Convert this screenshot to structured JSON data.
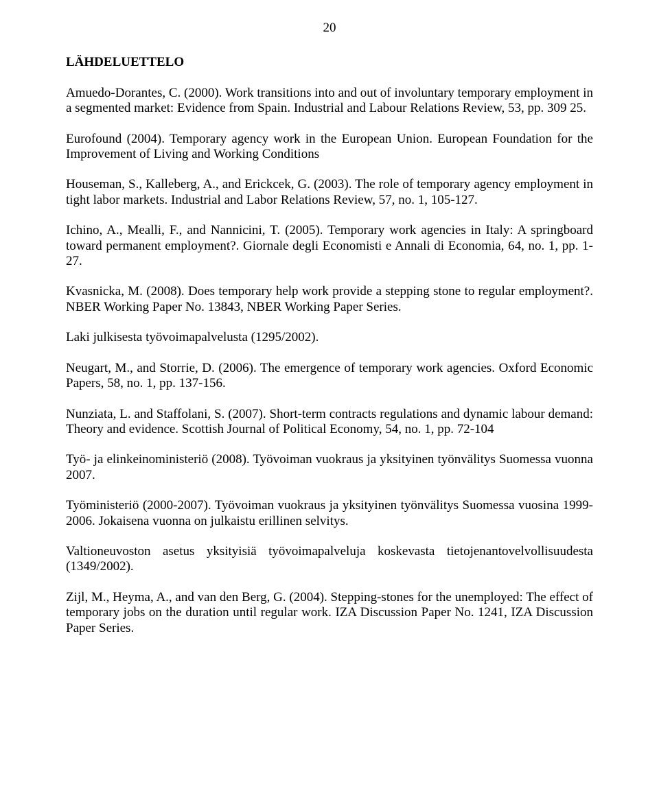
{
  "page": {
    "number": "20",
    "heading": "LÄHDELUETTELO",
    "background_color": "#ffffff",
    "text_color": "#000000",
    "font_family": "Times New Roman",
    "body_fontsize_pt": 14
  },
  "references": [
    "Amuedo-Dorantes, C. (2000). Work transitions into and out of involuntary temporary employment in a segmented market: Evidence from Spain. Industrial and Labour Relations Review, 53, pp. 309 25.",
    "Eurofound (2004). Temporary agency work in the European Union. European Foundation for the Improvement of Living and Working Conditions",
    "Houseman, S., Kalleberg, A., and Erickcek, G. (2003). The role of temporary agency employment in tight labor markets. Industrial and Labor Relations Review, 57, no. 1, 105-127.",
    "Ichino, A., Mealli, F., and Nannicini, T. (2005). Temporary work agencies in Italy: A springboard toward permanent employment?. Giornale degli Economisti e Annali di Economia, 64, no. 1, pp. 1-27.",
    "Kvasnicka, M. (2008). Does temporary help work provide a stepping stone to regular employment?. NBER Working Paper No. 13843, NBER Working Paper Series.",
    "Laki julkisesta työvoimapalvelusta (1295/2002).",
    "Neugart, M., and Storrie, D. (2006). The emergence of temporary work agencies. Oxford Economic Papers, 58, no. 1, pp. 137-156.",
    "Nunziata, L. and Staffolani, S. (2007). Short-term contracts regulations and dynamic labour demand: Theory and evidence. Scottish Journal of Political Economy, 54, no. 1, pp. 72-104",
    "Työ- ja elinkeinoministeriö (2008). Työvoiman vuokraus ja yksityinen työnvälitys Suomessa vuonna 2007.",
    "Työministeriö (2000-2007). Työvoiman vuokraus ja yksityinen työnvälitys Suomessa vuosina 1999-2006. Jokaisena vuonna on julkaistu erillinen selvitys.",
    "Valtioneuvoston asetus yksityisiä työvoimapalveluja koskevasta tietojenantovelvollisuudesta (1349/2002).",
    "Zijl, M., Heyma, A., and van den Berg, G. (2004). Stepping-stones for the unemployed: The effect of temporary jobs on the duration until regular work. IZA Discussion Paper No. 1241, IZA Discussion Paper Series."
  ]
}
